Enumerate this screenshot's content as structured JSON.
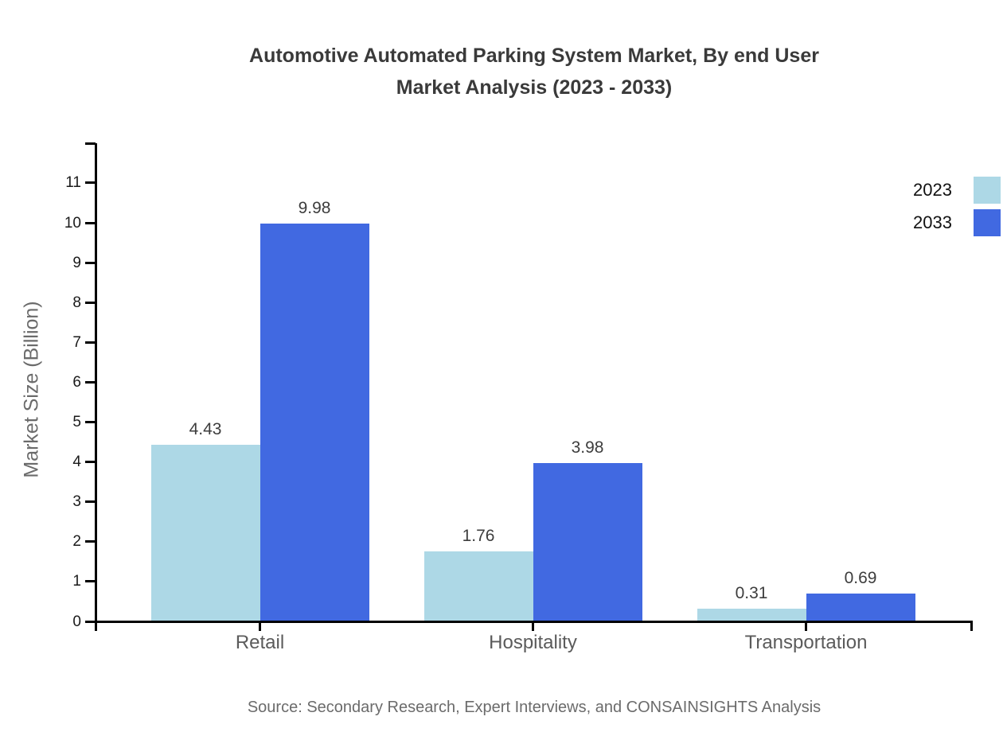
{
  "title": {
    "line1": "Automotive Automated Parking System Market, By end User",
    "line2": "Market Analysis (2023 - 2033)"
  },
  "y_axis_label": "Market Size (Billion)",
  "source_note": "Source: Secondary Research, Expert Interviews, and CONSAINSIGHTS Analysis",
  "legend": [
    {
      "label": "2023",
      "color": "#add8e6"
    },
    {
      "label": "2033",
      "color": "#4169e1"
    }
  ],
  "colors": {
    "series_2023": "#add8e6",
    "series_2033": "#4169e1",
    "axis": "#000000",
    "title_text": "#3a3a3a",
    "muted_text": "#6b6b6b"
  },
  "chart_data": {
    "type": "bar",
    "title": "Automotive Automated Parking System Market, By end User Market Analysis (2023 - 2033)",
    "categories": [
      "Retail",
      "Hospitality",
      "Transportation"
    ],
    "series": [
      {
        "name": "2023",
        "color": "#add8e6",
        "values": [
          4.43,
          1.76,
          0.31
        ]
      },
      {
        "name": "2033",
        "color": "#4169e1",
        "values": [
          9.98,
          3.98,
          0.69
        ]
      }
    ],
    "value_labels": [
      [
        "4.43",
        "1.76",
        "0.31"
      ],
      [
        "9.98",
        "3.98",
        "0.69"
      ]
    ],
    "xlabel": "",
    "ylabel": "Market Size (Billion)",
    "ylim": [
      0,
      12
    ],
    "yticks": [
      0,
      1,
      2,
      3,
      4,
      5,
      6,
      7,
      8,
      9,
      10,
      11
    ],
    "grid": false,
    "legend_position": "top-right"
  }
}
